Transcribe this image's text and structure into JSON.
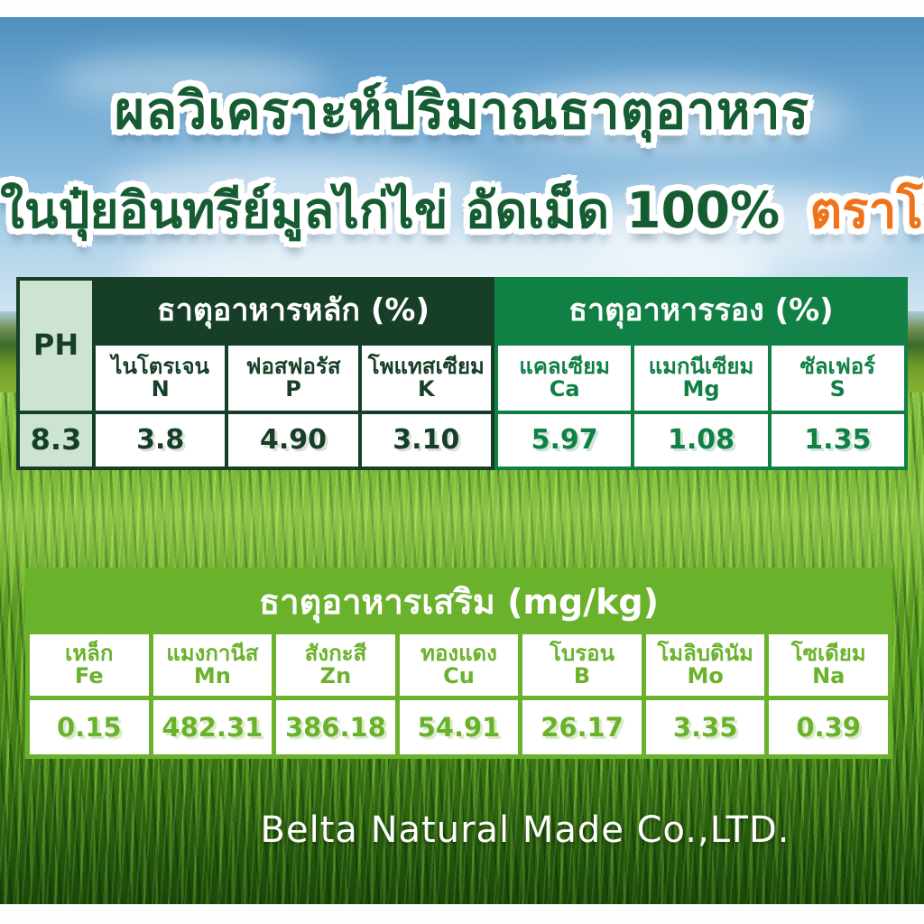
{
  "titles": {
    "line1": "ผลวิเคราะห์ปริมาณธาตุอาหาร",
    "line2_main": "ในปุ๋ยอินทรีย์มูลไก่ไข่ อัดเม็ด 100%",
    "line2_brand": "ตราโทริ"
  },
  "colors": {
    "dark_green": "#173f27",
    "title_green": "#155c33",
    "medium_green": "#108045",
    "bright_green": "#6ab22c",
    "mint": "#cde4d3",
    "brand_orange": "#ef7419"
  },
  "table_main": {
    "ph_label": "PH",
    "ph_value": "8.3",
    "primary_header": "ธาตุอาหารหลัก (%)",
    "secondary_header": "ธาตุอาหารรอง (%)",
    "primary_columns": [
      {
        "name": "ไนโตรเจน",
        "symbol": "N",
        "value": "3.8"
      },
      {
        "name": "ฟอสฟอรัส",
        "symbol": "P",
        "value": "4.90"
      },
      {
        "name": "โพแทสเซียม",
        "symbol": "K",
        "value": "3.10"
      }
    ],
    "secondary_columns": [
      {
        "name": "แคลเซียม",
        "symbol": "Ca",
        "value": "5.97"
      },
      {
        "name": "แมกนีเซียม",
        "symbol": "Mg",
        "value": "1.08"
      },
      {
        "name": "ซัลเฟอร์",
        "symbol": "S",
        "value": "1.35"
      }
    ]
  },
  "table_trace": {
    "header": "ธาตุอาหารเสริม (mg/kg)",
    "columns": [
      {
        "name": "เหล็ก",
        "symbol": "Fe",
        "value": "0.15"
      },
      {
        "name": "แมงกานีส",
        "symbol": "Mn",
        "value": "482.31"
      },
      {
        "name": "สังกะสี",
        "symbol": "Zn",
        "value": "386.18"
      },
      {
        "name": "ทองแดง",
        "symbol": "Cu",
        "value": "54.91"
      },
      {
        "name": "โบรอน",
        "symbol": "B",
        "value": "26.17"
      },
      {
        "name": "โมลิบดินัม",
        "symbol": "Mo",
        "value": "3.35"
      },
      {
        "name": "โซเดียม",
        "symbol": "Na",
        "value": "0.39"
      }
    ]
  },
  "footer": {
    "company": "Belta Natural Made Co.,LTD."
  },
  "chart_data": [
    {
      "type": "table",
      "title": "ธาตุอาหารหลัก (%) / ธาตุอาหารรอง (%)",
      "columns": [
        "PH",
        "ไนโตรเจน N",
        "ฟอสฟอรัส P",
        "โพแทสเซียม K",
        "แคลเซียม Ca",
        "แมกนีเซียม Mg",
        "ซัลเฟอร์ S"
      ],
      "rows": [
        [
          "8.3",
          "3.8",
          "4.90",
          "3.10",
          "5.97",
          "1.08",
          "1.35"
        ]
      ]
    },
    {
      "type": "table",
      "title": "ธาตุอาหารเสริม (mg/kg)",
      "columns": [
        "เหล็ก Fe",
        "แมงกานีส Mn",
        "สังกะสี Zn",
        "ทองแดง Cu",
        "โบรอน B",
        "โมลิบดินัม Mo",
        "โซเดียม Na"
      ],
      "rows": [
        [
          "0.15",
          "482.31",
          "386.18",
          "54.91",
          "26.17",
          "3.35",
          "0.39"
        ]
      ]
    }
  ]
}
